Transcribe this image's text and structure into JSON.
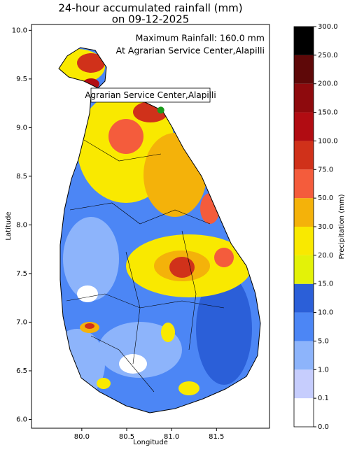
{
  "chart_data": {
    "type": "map",
    "title": "24-hour accumulated rainfall (mm)",
    "subtitle": "on 09-12-2025",
    "xlabel": "Longitude",
    "ylabel": "Latitude",
    "annotation_lines": [
      "Maximum Rainfall: 160.0 mm",
      "At Agrarian Service Center,Alapilli"
    ],
    "marker": {
      "label": "Agrarian Service Center,Alapilli",
      "lon": 80.88,
      "lat": 9.18,
      "color": "#1a9a1a"
    },
    "xlim": [
      79.44,
      82.09
    ],
    "ylim": [
      5.91,
      10.06
    ],
    "xticks": [
      {
        "value": 80,
        "label": "80.0"
      },
      {
        "value": 80.5,
        "label": "80.5"
      },
      {
        "value": 81,
        "label": "81.0"
      },
      {
        "value": 81.5,
        "label": "81.5"
      }
    ],
    "yticks": [
      {
        "value": 6,
        "label": "6.0"
      },
      {
        "value": 6.5,
        "label": "6.5"
      },
      {
        "value": 7,
        "label": "7.0"
      },
      {
        "value": 7.5,
        "label": "7.5"
      },
      {
        "value": 8,
        "label": "8.0"
      },
      {
        "value": 8.5,
        "label": "8.5"
      },
      {
        "value": 9,
        "label": "9.0"
      },
      {
        "value": 9.5,
        "label": "9.5"
      },
      {
        "value": 10,
        "label": "10.0"
      }
    ],
    "colorbar": {
      "label": "Precipitation (mm)",
      "levels": [
        {
          "value": 0,
          "label": "0.0"
        },
        {
          "value": 0.1,
          "label": "0.1"
        },
        {
          "value": 1,
          "label": "1.0"
        },
        {
          "value": 5,
          "label": "5.0"
        },
        {
          "value": 10,
          "label": "10.0"
        },
        {
          "value": 15,
          "label": "15.0"
        },
        {
          "value": 20,
          "label": "20.0"
        },
        {
          "value": 30,
          "label": "30.0"
        },
        {
          "value": 50,
          "label": "50.0"
        },
        {
          "value": 75,
          "label": "75.0"
        },
        {
          "value": 100,
          "label": "100.0"
        },
        {
          "value": 150,
          "label": "150.0"
        },
        {
          "value": 200,
          "label": "200.0"
        },
        {
          "value": 250,
          "label": "250.0"
        },
        {
          "value": 300,
          "label": "300.0"
        }
      ],
      "colors": [
        "#ffffff",
        "#c6cdfd",
        "#8db4fb",
        "#4c86f5",
        "#2b5fd8",
        "#e3f208",
        "#f9e900",
        "#f4b20a",
        "#f45c3c",
        "#d0311a",
        "#b10c12",
        "#8e0a0d",
        "#5e0808",
        "#000000"
      ]
    }
  }
}
